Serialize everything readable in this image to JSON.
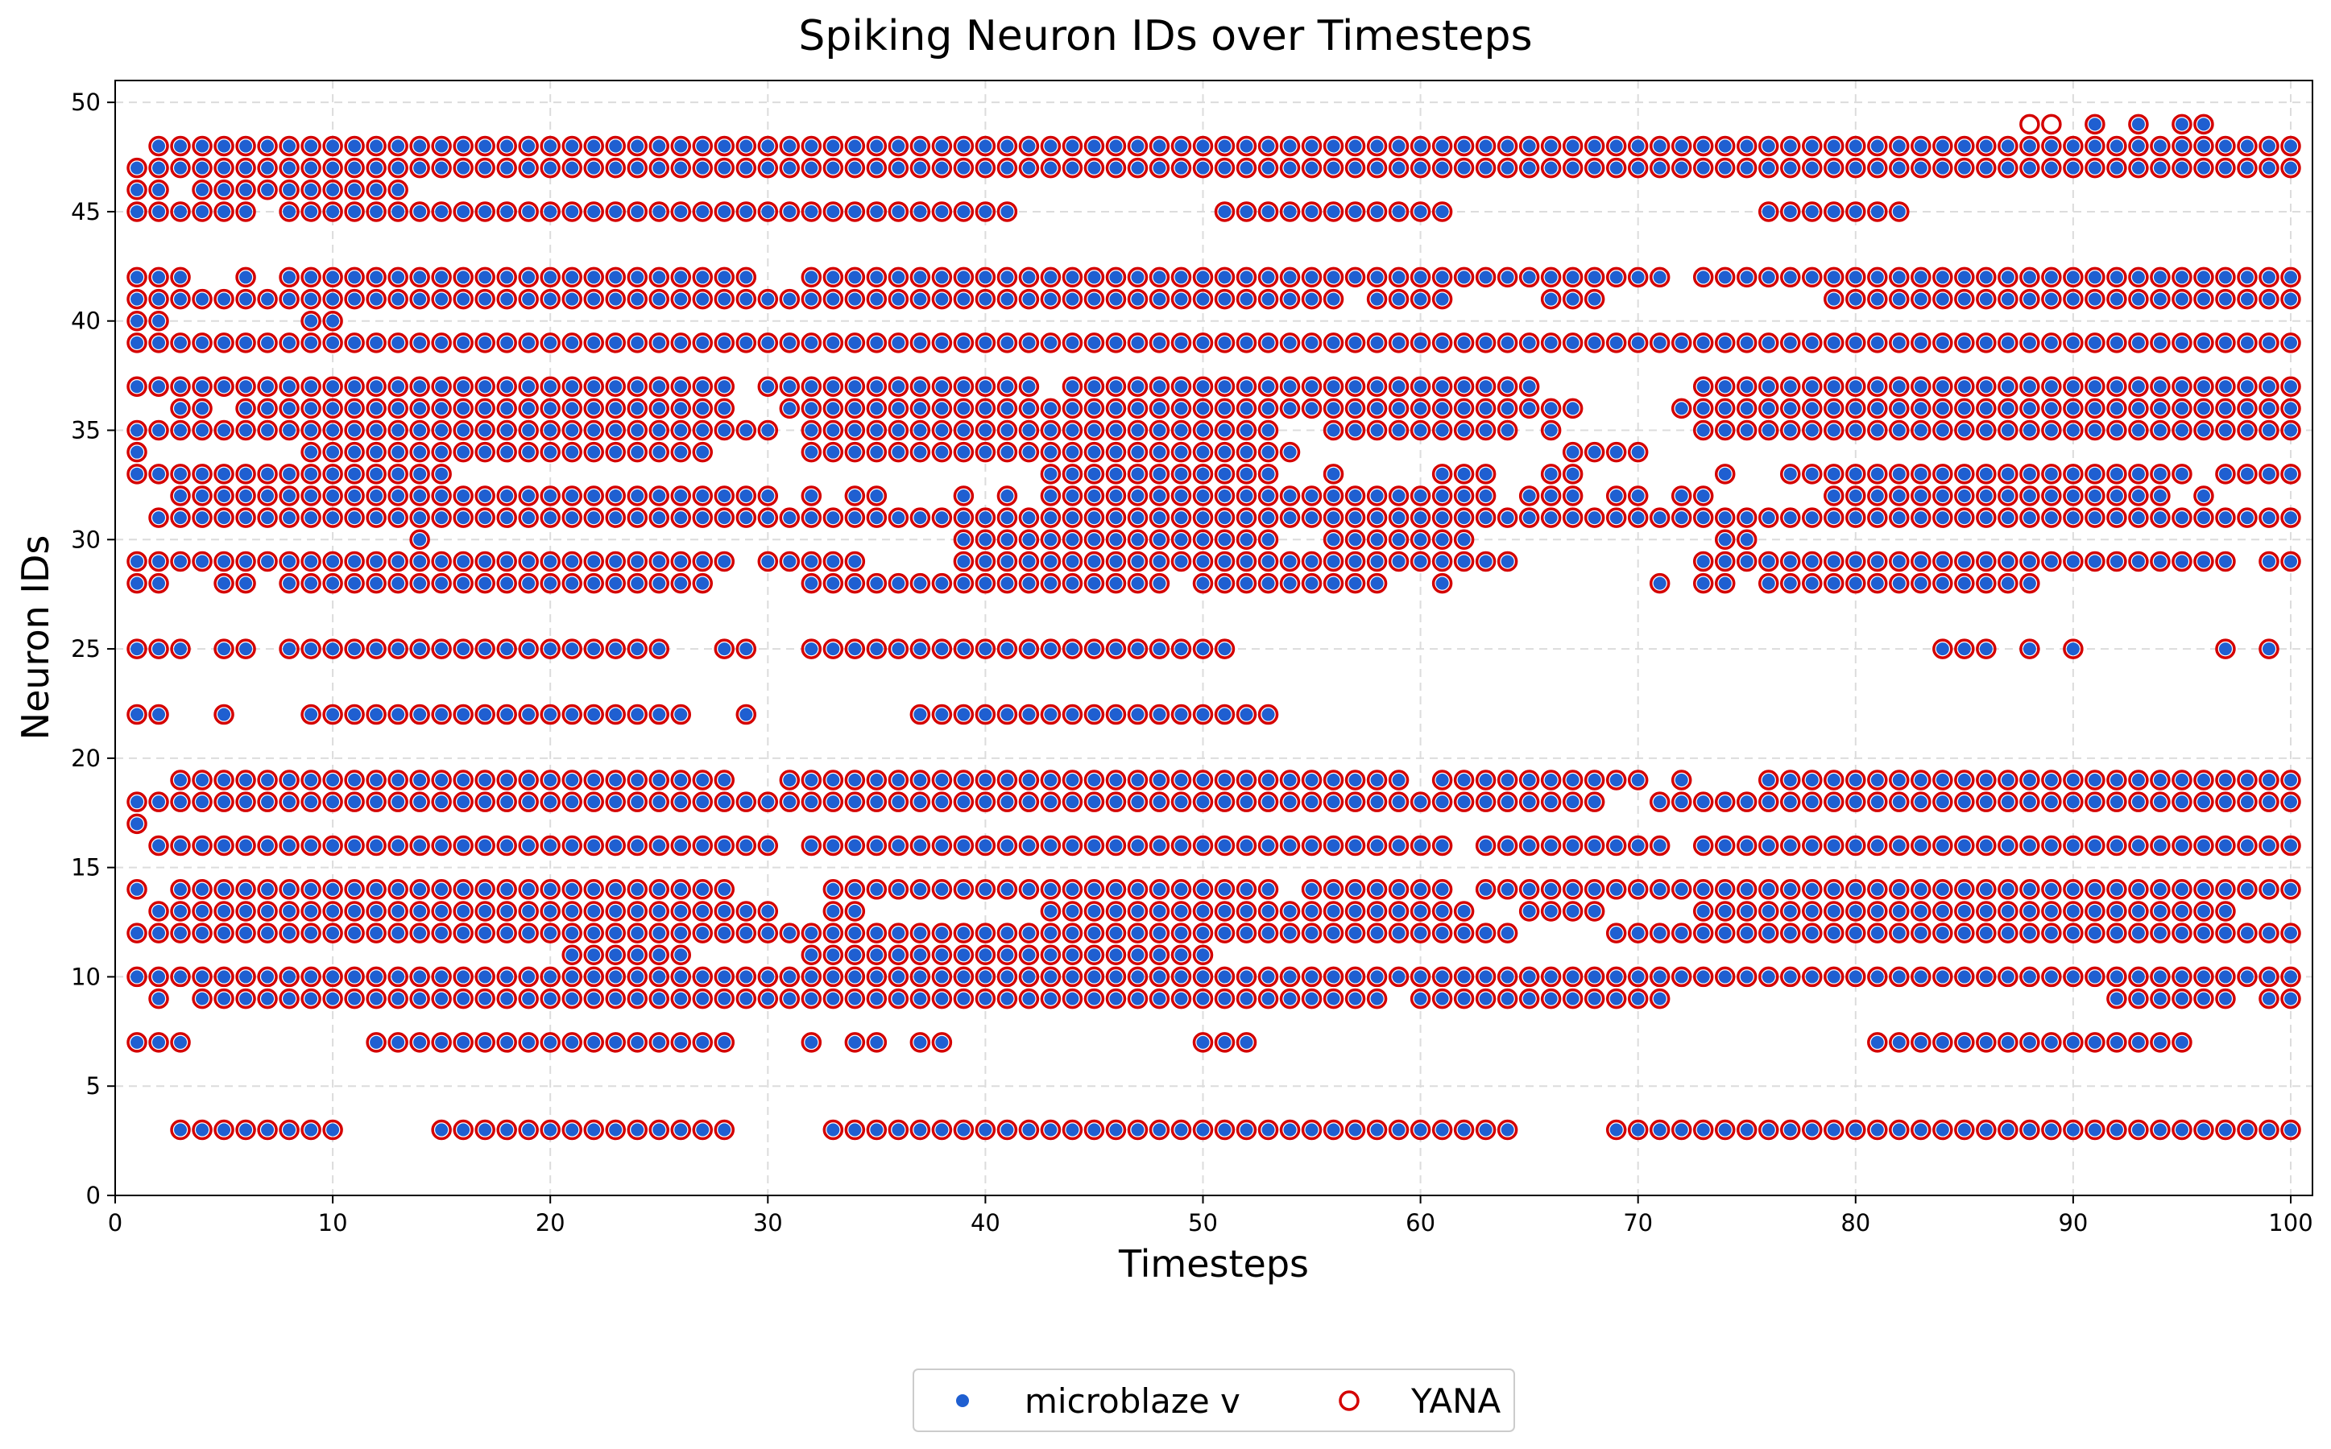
{
  "chart_data": {
    "type": "scatter",
    "title": "Spiking Neuron IDs over Timesteps",
    "xlabel": "Timesteps",
    "ylabel": "Neuron IDs",
    "xlim": [
      0,
      101
    ],
    "ylim": [
      0,
      51
    ],
    "xticks": [
      0,
      10,
      20,
      30,
      40,
      50,
      60,
      70,
      80,
      90,
      100
    ],
    "yticks": [
      0,
      5,
      10,
      15,
      20,
      25,
      30,
      35,
      40,
      45,
      50
    ],
    "grid": true,
    "legend_position": "bottom-center",
    "series": [
      {
        "name": "microblaze v",
        "marker": "filled-dot",
        "color": "#1f5fd1"
      },
      {
        "name": "YANA",
        "marker": "hollow-circle",
        "color": "#d40000"
      }
    ],
    "spikes_by_neuron": {
      "3": [
        [
          3,
          10
        ],
        [
          15,
          28
        ],
        [
          33,
          64
        ],
        [
          69,
          100
        ]
      ],
      "7": [
        [
          1,
          3
        ],
        [
          12,
          28
        ],
        [
          32,
          32
        ],
        [
          34,
          35
        ],
        [
          37,
          38
        ],
        [
          50,
          52
        ],
        [
          81,
          95
        ]
      ],
      "9": [
        [
          2,
          2
        ],
        [
          4,
          56
        ],
        [
          57,
          58
        ],
        [
          60,
          71
        ],
        [
          92,
          97
        ],
        [
          99,
          100
        ]
      ],
      "10": [
        [
          1,
          100
        ]
      ],
      "11": [
        [
          21,
          26
        ],
        [
          32,
          50
        ]
      ],
      "12": [
        [
          1,
          63
        ],
        [
          64,
          64
        ],
        [
          69,
          100
        ]
      ],
      "13": [
        [
          2,
          20
        ],
        [
          21,
          30
        ],
        [
          33,
          34
        ],
        [
          43,
          62
        ],
        [
          65,
          68
        ],
        [
          73,
          96
        ],
        [
          97,
          97
        ]
      ],
      "14": [
        [
          1,
          1
        ],
        [
          3,
          28
        ],
        [
          33,
          53
        ],
        [
          55,
          61
        ],
        [
          63,
          75
        ],
        [
          76,
          100
        ]
      ],
      "16": [
        [
          2,
          30
        ],
        [
          32,
          61
        ],
        [
          63,
          71
        ],
        [
          73,
          99
        ],
        [
          100,
          100
        ]
      ],
      "17": [
        [
          1,
          1
        ]
      ],
      "18": [
        [
          1,
          68
        ],
        [
          71,
          100
        ]
      ],
      "19": [
        [
          3,
          28
        ],
        [
          31,
          59
        ],
        [
          61,
          70
        ],
        [
          72,
          72
        ],
        [
          76,
          100
        ]
      ],
      "22": [
        [
          1,
          2
        ],
        [
          5,
          5
        ],
        [
          9,
          26
        ],
        [
          29,
          29
        ],
        [
          37,
          53
        ]
      ],
      "25": [
        [
          1,
          3
        ],
        [
          5,
          6
        ],
        [
          8,
          25
        ],
        [
          28,
          29
        ],
        [
          32,
          51
        ],
        [
          84,
          86
        ],
        [
          88,
          88
        ],
        [
          90,
          90
        ],
        [
          97,
          97
        ],
        [
          99,
          99
        ]
      ],
      "28": [
        [
          1,
          2
        ],
        [
          5,
          6
        ],
        [
          8,
          25
        ],
        [
          26,
          27
        ],
        [
          32,
          48
        ],
        [
          50,
          58
        ],
        [
          61,
          61
        ],
        [
          71,
          71
        ],
        [
          73,
          74
        ],
        [
          76,
          88
        ]
      ],
      "29": [
        [
          1,
          28
        ],
        [
          30,
          34
        ],
        [
          39,
          64
        ],
        [
          73,
          97
        ],
        [
          99,
          100
        ]
      ],
      "30": [
        [
          14,
          14
        ],
        [
          39,
          50
        ],
        [
          51,
          53
        ],
        [
          56,
          62
        ],
        [
          74,
          75
        ]
      ],
      "31": [
        [
          2,
          100
        ]
      ],
      "32": [
        [
          3,
          30
        ],
        [
          32,
          32
        ],
        [
          34,
          35
        ],
        [
          39,
          39
        ],
        [
          41,
          41
        ],
        [
          43,
          63
        ],
        [
          65,
          67
        ],
        [
          69,
          70
        ],
        [
          72,
          73
        ],
        [
          79,
          94
        ],
        [
          96,
          96
        ]
      ],
      "33": [
        [
          1,
          15
        ],
        [
          43,
          53
        ],
        [
          56,
          56
        ],
        [
          61,
          63
        ],
        [
          66,
          67
        ],
        [
          74,
          74
        ],
        [
          77,
          95
        ],
        [
          97,
          100
        ]
      ],
      "34": [
        [
          1,
          1
        ],
        [
          9,
          27
        ],
        [
          32,
          54
        ],
        [
          67,
          70
        ]
      ],
      "35": [
        [
          1,
          30
        ],
        [
          32,
          53
        ],
        [
          56,
          64
        ],
        [
          66,
          66
        ],
        [
          73,
          100
        ]
      ],
      "36": [
        [
          3,
          4
        ],
        [
          6,
          28
        ],
        [
          31,
          67
        ],
        [
          72,
          100
        ]
      ],
      "37": [
        [
          1,
          28
        ],
        [
          30,
          42
        ],
        [
          44,
          65
        ],
        [
          73,
          100
        ]
      ],
      "39": [
        [
          1,
          100
        ]
      ],
      "40": [
        [
          1,
          2
        ],
        [
          9,
          10
        ]
      ],
      "41": [
        [
          1,
          56
        ],
        [
          58,
          61
        ],
        [
          66,
          68
        ],
        [
          79,
          100
        ]
      ],
      "42": [
        [
          1,
          3
        ],
        [
          6,
          6
        ],
        [
          8,
          29
        ],
        [
          32,
          71
        ],
        [
          73,
          100
        ]
      ],
      "45": [
        [
          1,
          6
        ],
        [
          8,
          35
        ],
        [
          36,
          41
        ],
        [
          51,
          61
        ],
        [
          76,
          82
        ]
      ],
      "46": [
        [
          1,
          2
        ],
        [
          4,
          13
        ]
      ],
      "47": [
        [
          1,
          100
        ]
      ],
      "48": [
        [
          2,
          100
        ]
      ],
      "49": [
        [
          91,
          91
        ],
        [
          93,
          93
        ],
        [
          95,
          96
        ]
      ]
    },
    "yana_only": [
      [
        88,
        49
      ],
      [
        89,
        49
      ]
    ]
  },
  "legend": {
    "entry1": "microblaze v",
    "entry2": "YANA"
  },
  "colors": {
    "blue": "#1f5fd1",
    "red": "#d40000",
    "grid": "#dcdcdc"
  }
}
